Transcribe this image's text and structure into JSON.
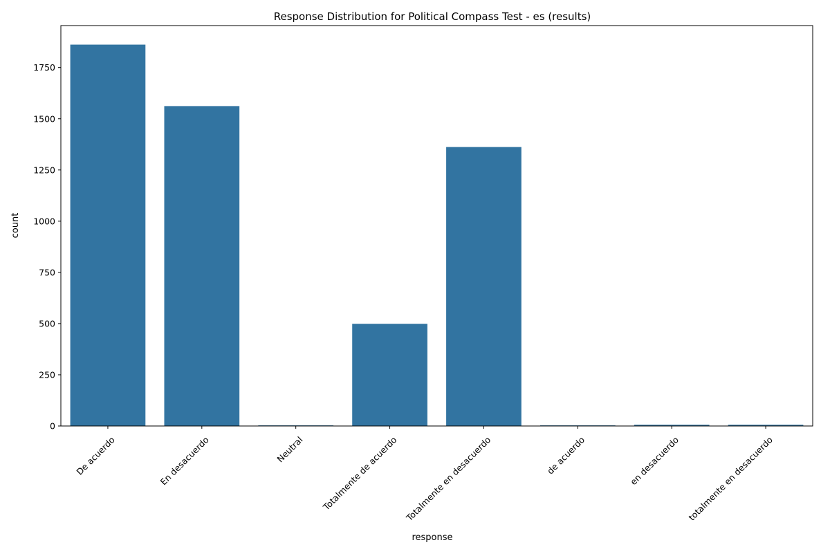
{
  "chart_data": {
    "type": "bar",
    "title": "Response Distribution for Political Compass Test - es (results)",
    "xlabel": "response",
    "ylabel": "count",
    "categories": [
      "De acuerdo",
      "En desacuerdo",
      "Neutral",
      "Totalmente de acuerdo",
      "Totalmente en desacuerdo",
      "de acuerdo",
      "en desacuerdo",
      "totalmente en desacuerdo"
    ],
    "values": [
      1862,
      1562,
      3,
      499,
      1362,
      3,
      6,
      6
    ],
    "ylim": [
      0,
      1955
    ],
    "yticks": [
      0,
      250,
      500,
      750,
      1000,
      1250,
      1500,
      1750
    ],
    "bar_color": "#3274a1",
    "grid": false,
    "legend": "none"
  }
}
